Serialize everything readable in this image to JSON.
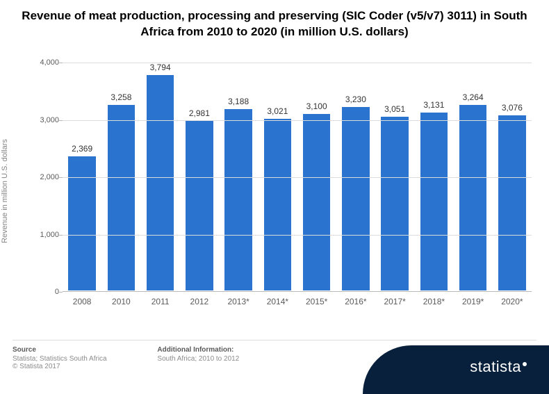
{
  "title": "Revenue of meat production, processing and preserving (SIC Coder (v5/v7) 3011) in South Africa from 2010 to 2020 (in million U.S. dollars)",
  "chart": {
    "type": "bar",
    "y_label": "Revenue in million U.S. dollars",
    "y_max": 4000,
    "y_ticks": [
      0,
      1000,
      2000,
      3000,
      4000
    ],
    "y_tick_labels": [
      "0",
      "1,000",
      "2,000",
      "3,000",
      "4,000"
    ],
    "categories": [
      "2008",
      "2010",
      "2011",
      "2012",
      "2013*",
      "2014*",
      "2015*",
      "2016*",
      "2017*",
      "2018*",
      "2019*",
      "2020*"
    ],
    "values": [
      2369,
      3258,
      3794,
      2981,
      3188,
      3021,
      3100,
      3230,
      3051,
      3131,
      3264,
      3076
    ],
    "value_labels": [
      "2,369",
      "3,258",
      "3,794",
      "2,981",
      "3,188",
      "3,021",
      "3,100",
      "3,230",
      "3,051",
      "3,131",
      "3,264",
      "3,076"
    ],
    "bar_color": "#2a74cf",
    "grid_color": "#dcdcdc",
    "axis_color": "#b9b9b9",
    "background_color": "#ffffff",
    "title_fontsize": 17,
    "label_fontsize": 11,
    "value_fontsize": 12,
    "bar_width_ratio": 0.74
  },
  "footer": {
    "source_heading": "Source",
    "source_text": "Statista; Statistics South Africa",
    "copyright": "© Statista 2017",
    "info_heading": "Additional Information:",
    "info_text": "South Africa; 2010 to 2012"
  },
  "logo": {
    "text": "statista",
    "bg_color": "#08203b",
    "text_color": "#ffffff"
  }
}
